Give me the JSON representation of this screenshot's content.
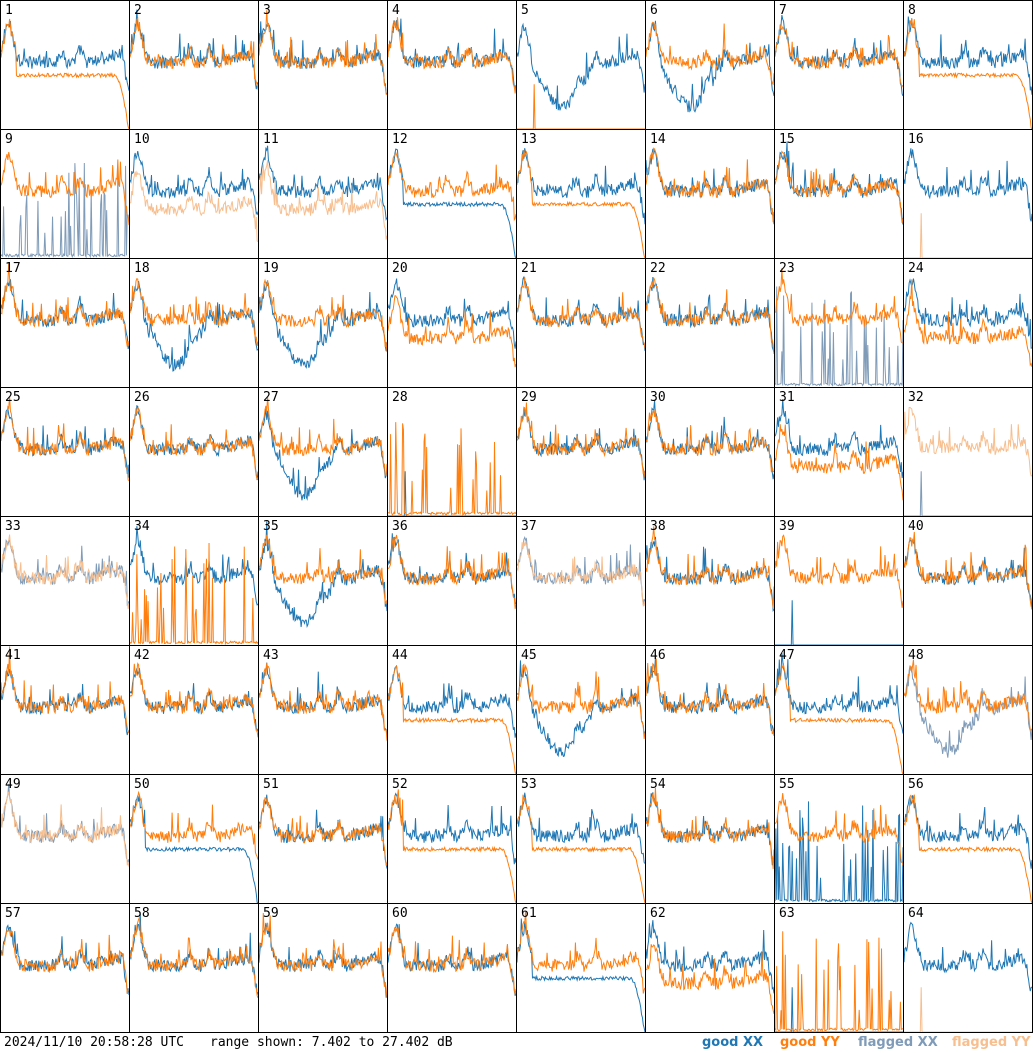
{
  "chart_data": {
    "type": "line",
    "layout": "8x8 small multiples",
    "panels": [
      {
        "label": "1",
        "xx": "good",
        "yy": "good",
        "xx_shape": "normal",
        "yy_shape": "rolloff"
      },
      {
        "label": "2",
        "xx": "good",
        "yy": "good",
        "xx_shape": "normal",
        "yy_shape": "normal"
      },
      {
        "label": "3",
        "xx": "good",
        "yy": "good",
        "xx_shape": "normal",
        "yy_shape": "normal"
      },
      {
        "label": "4",
        "xx": "good",
        "yy": "good",
        "xx_shape": "normal",
        "yy_shape": "normal"
      },
      {
        "label": "5",
        "xx": "good",
        "yy": "good",
        "xx_shape": "dip",
        "yy_shape": "dead"
      },
      {
        "label": "6",
        "xx": "good",
        "yy": "good",
        "xx_shape": "dip",
        "yy_shape": "normal"
      },
      {
        "label": "7",
        "xx": "good",
        "yy": "good",
        "xx_shape": "normal",
        "yy_shape": "normal"
      },
      {
        "label": "8",
        "xx": "good",
        "yy": "good",
        "xx_shape": "normal",
        "yy_shape": "rolloff"
      },
      {
        "label": "9",
        "xx": "flagged",
        "yy": "good",
        "xx_shape": "spiky",
        "yy_shape": "normal"
      },
      {
        "label": "10",
        "xx": "good",
        "yy": "flagged",
        "xx_shape": "normal",
        "yy_shape": "low"
      },
      {
        "label": "11",
        "xx": "good",
        "yy": "flagged",
        "xx_shape": "normal",
        "yy_shape": "low"
      },
      {
        "label": "12",
        "xx": "good",
        "yy": "good",
        "xx_shape": "rolloff",
        "yy_shape": "normal"
      },
      {
        "label": "13",
        "xx": "good",
        "yy": "good",
        "xx_shape": "normal",
        "yy_shape": "rolloff"
      },
      {
        "label": "14",
        "xx": "good",
        "yy": "good",
        "xx_shape": "normal",
        "yy_shape": "normal"
      },
      {
        "label": "15",
        "xx": "good",
        "yy": "good",
        "xx_shape": "normal",
        "yy_shape": "normal"
      },
      {
        "label": "16",
        "xx": "good",
        "yy": "flagged",
        "xx_shape": "normal",
        "yy_shape": "dead"
      },
      {
        "label": "17",
        "xx": "good",
        "yy": "good",
        "xx_shape": "normal",
        "yy_shape": "normal"
      },
      {
        "label": "18",
        "xx": "good",
        "yy": "good",
        "xx_shape": "dip",
        "yy_shape": "normal"
      },
      {
        "label": "19",
        "xx": "good",
        "yy": "good",
        "xx_shape": "dip",
        "yy_shape": "normal"
      },
      {
        "label": "20",
        "xx": "good",
        "yy": "good",
        "xx_shape": "normal",
        "yy_shape": "low"
      },
      {
        "label": "21",
        "xx": "good",
        "yy": "good",
        "xx_shape": "normal",
        "yy_shape": "normal"
      },
      {
        "label": "22",
        "xx": "good",
        "yy": "good",
        "xx_shape": "normal",
        "yy_shape": "normal"
      },
      {
        "label": "23",
        "xx": "flagged",
        "yy": "good",
        "xx_shape": "spiky",
        "yy_shape": "normal"
      },
      {
        "label": "24",
        "xx": "good",
        "yy": "good",
        "xx_shape": "normal",
        "yy_shape": "low"
      },
      {
        "label": "25",
        "xx": "good",
        "yy": "good",
        "xx_shape": "normal",
        "yy_shape": "normal"
      },
      {
        "label": "26",
        "xx": "good",
        "yy": "good",
        "xx_shape": "normal",
        "yy_shape": "normal"
      },
      {
        "label": "27",
        "xx": "good",
        "yy": "good",
        "xx_shape": "dip",
        "yy_shape": "normal"
      },
      {
        "label": "28",
        "xx": "good",
        "yy": "good",
        "xx_shape": "dead",
        "yy_shape": "spiky"
      },
      {
        "label": "29",
        "xx": "good",
        "yy": "good",
        "xx_shape": "normal",
        "yy_shape": "normal"
      },
      {
        "label": "30",
        "xx": "good",
        "yy": "good",
        "xx_shape": "normal",
        "yy_shape": "normal"
      },
      {
        "label": "31",
        "xx": "good",
        "yy": "good",
        "xx_shape": "normal",
        "yy_shape": "low"
      },
      {
        "label": "32",
        "xx": "flagged",
        "yy": "flagged",
        "xx_shape": "dead",
        "yy_shape": "normal"
      },
      {
        "label": "33",
        "xx": "flagged",
        "yy": "flagged",
        "xx_shape": "normal",
        "yy_shape": "normal"
      },
      {
        "label": "34",
        "xx": "good",
        "yy": "good",
        "xx_shape": "normal",
        "yy_shape": "spiky"
      },
      {
        "label": "35",
        "xx": "good",
        "yy": "good",
        "xx_shape": "dip",
        "yy_shape": "normal"
      },
      {
        "label": "36",
        "xx": "good",
        "yy": "good",
        "xx_shape": "normal",
        "yy_shape": "normal"
      },
      {
        "label": "37",
        "xx": "flagged",
        "yy": "flagged",
        "xx_shape": "normal",
        "yy_shape": "normal"
      },
      {
        "label": "38",
        "xx": "good",
        "yy": "good",
        "xx_shape": "normal",
        "yy_shape": "normal"
      },
      {
        "label": "39",
        "xx": "good",
        "yy": "good",
        "xx_shape": "dead",
        "yy_shape": "normal"
      },
      {
        "label": "40",
        "xx": "good",
        "yy": "good",
        "xx_shape": "normal",
        "yy_shape": "normal"
      },
      {
        "label": "41",
        "xx": "good",
        "yy": "good",
        "xx_shape": "normal",
        "yy_shape": "normal"
      },
      {
        "label": "42",
        "xx": "good",
        "yy": "good",
        "xx_shape": "normal",
        "yy_shape": "normal"
      },
      {
        "label": "43",
        "xx": "good",
        "yy": "good",
        "xx_shape": "normal",
        "yy_shape": "normal"
      },
      {
        "label": "44",
        "xx": "good",
        "yy": "good",
        "xx_shape": "normal",
        "yy_shape": "rolloff"
      },
      {
        "label": "45",
        "xx": "good",
        "yy": "good",
        "xx_shape": "dip",
        "yy_shape": "normal"
      },
      {
        "label": "46",
        "xx": "good",
        "yy": "good",
        "xx_shape": "normal",
        "yy_shape": "normal"
      },
      {
        "label": "47",
        "xx": "good",
        "yy": "good",
        "xx_shape": "normal",
        "yy_shape": "rolloff"
      },
      {
        "label": "48",
        "xx": "flagged",
        "yy": "good",
        "xx_shape": "dip",
        "yy_shape": "normal"
      },
      {
        "label": "49",
        "xx": "flagged",
        "yy": "flagged",
        "xx_shape": "normal",
        "yy_shape": "normal"
      },
      {
        "label": "50",
        "xx": "good",
        "yy": "good",
        "xx_shape": "rolloff",
        "yy_shape": "normal"
      },
      {
        "label": "51",
        "xx": "good",
        "yy": "good",
        "xx_shape": "normal",
        "yy_shape": "normal"
      },
      {
        "label": "52",
        "xx": "good",
        "yy": "good",
        "xx_shape": "normal",
        "yy_shape": "rolloff"
      },
      {
        "label": "53",
        "xx": "good",
        "yy": "good",
        "xx_shape": "normal",
        "yy_shape": "rolloff"
      },
      {
        "label": "54",
        "xx": "good",
        "yy": "good",
        "xx_shape": "normal",
        "yy_shape": "normal"
      },
      {
        "label": "55",
        "xx": "good",
        "yy": "good",
        "xx_shape": "spiky",
        "yy_shape": "normal"
      },
      {
        "label": "56",
        "xx": "good",
        "yy": "good",
        "xx_shape": "normal",
        "yy_shape": "rolloff"
      },
      {
        "label": "57",
        "xx": "good",
        "yy": "good",
        "xx_shape": "normal",
        "yy_shape": "normal"
      },
      {
        "label": "58",
        "xx": "good",
        "yy": "good",
        "xx_shape": "normal",
        "yy_shape": "normal"
      },
      {
        "label": "59",
        "xx": "good",
        "yy": "good",
        "xx_shape": "normal",
        "yy_shape": "normal"
      },
      {
        "label": "60",
        "xx": "good",
        "yy": "good",
        "xx_shape": "normal",
        "yy_shape": "normal"
      },
      {
        "label": "61",
        "xx": "good",
        "yy": "good",
        "xx_shape": "rolloff",
        "yy_shape": "normal"
      },
      {
        "label": "62",
        "xx": "good",
        "yy": "good",
        "xx_shape": "normal",
        "yy_shape": "low"
      },
      {
        "label": "63",
        "xx": "good",
        "yy": "good",
        "xx_shape": "dead",
        "yy_shape": "spiky"
      },
      {
        "label": "64",
        "xx": "good",
        "yy": "flagged",
        "xx_shape": "normal",
        "yy_shape": "dead"
      }
    ],
    "grid": false,
    "legend_placement": "bottom-right"
  },
  "footer": {
    "timestamp": "2024/11/10 20:58:28 UTC",
    "range": "range shown: 7.402 to 27.402 dB"
  },
  "legend": {
    "good_xx": "good XX",
    "good_yy": "good YY",
    "flagged_xx": "flagged XX",
    "flagged_yy": "flagged YY"
  },
  "colors": {
    "good_xx": "#1f77b4",
    "good_yy": "#ff7f0e",
    "flagged_xx": "#7f9bb8",
    "flagged_yy": "#f7bf8f"
  }
}
